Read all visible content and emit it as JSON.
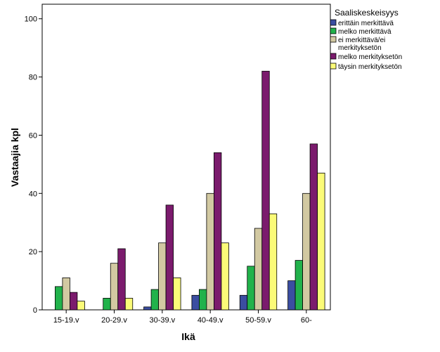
{
  "chart_data": {
    "type": "bar",
    "categories": [
      "15-19.v",
      "20-29.v",
      "30-39.v",
      "40-49.v",
      "50-59.v",
      "60-"
    ],
    "series": [
      {
        "name": "erittäin merkittävä",
        "color": "#3b4ea1",
        "values": [
          0,
          0,
          1,
          5,
          5,
          10
        ]
      },
      {
        "name": "melko merkittävä",
        "color": "#21b24b",
        "values": [
          8,
          4,
          7,
          7,
          15,
          17
        ]
      },
      {
        "name": "ei merkittävä/ei merkityksetön",
        "color": "#d2c9a2",
        "values": [
          11,
          16,
          23,
          40,
          28,
          40
        ]
      },
      {
        "name": "melko merkityksetön",
        "color": "#7b1b6d",
        "values": [
          6,
          21,
          36,
          54,
          82,
          57
        ]
      },
      {
        "name": "täysin merkityksetön",
        "color": "#fbfb78",
        "values": [
          3,
          4,
          11,
          23,
          33,
          47
        ]
      }
    ],
    "legend_title": "Saaliskeskeisyys",
    "legend_labels": [
      [
        "erittäin merkittävä"
      ],
      [
        "melko merkittävä"
      ],
      [
        "ei merkittävä/ei",
        "merkityksetön"
      ],
      [
        "melko merkityksetön"
      ],
      [
        "täysin merkityksetön"
      ]
    ],
    "xlabel": "Ikä",
    "ylabel": "Vastaajia kpl",
    "ylim": [
      0,
      105
    ],
    "yticks": [
      0,
      20,
      40,
      60,
      80,
      100
    ],
    "grid": false,
    "legend_position": "top-right"
  }
}
